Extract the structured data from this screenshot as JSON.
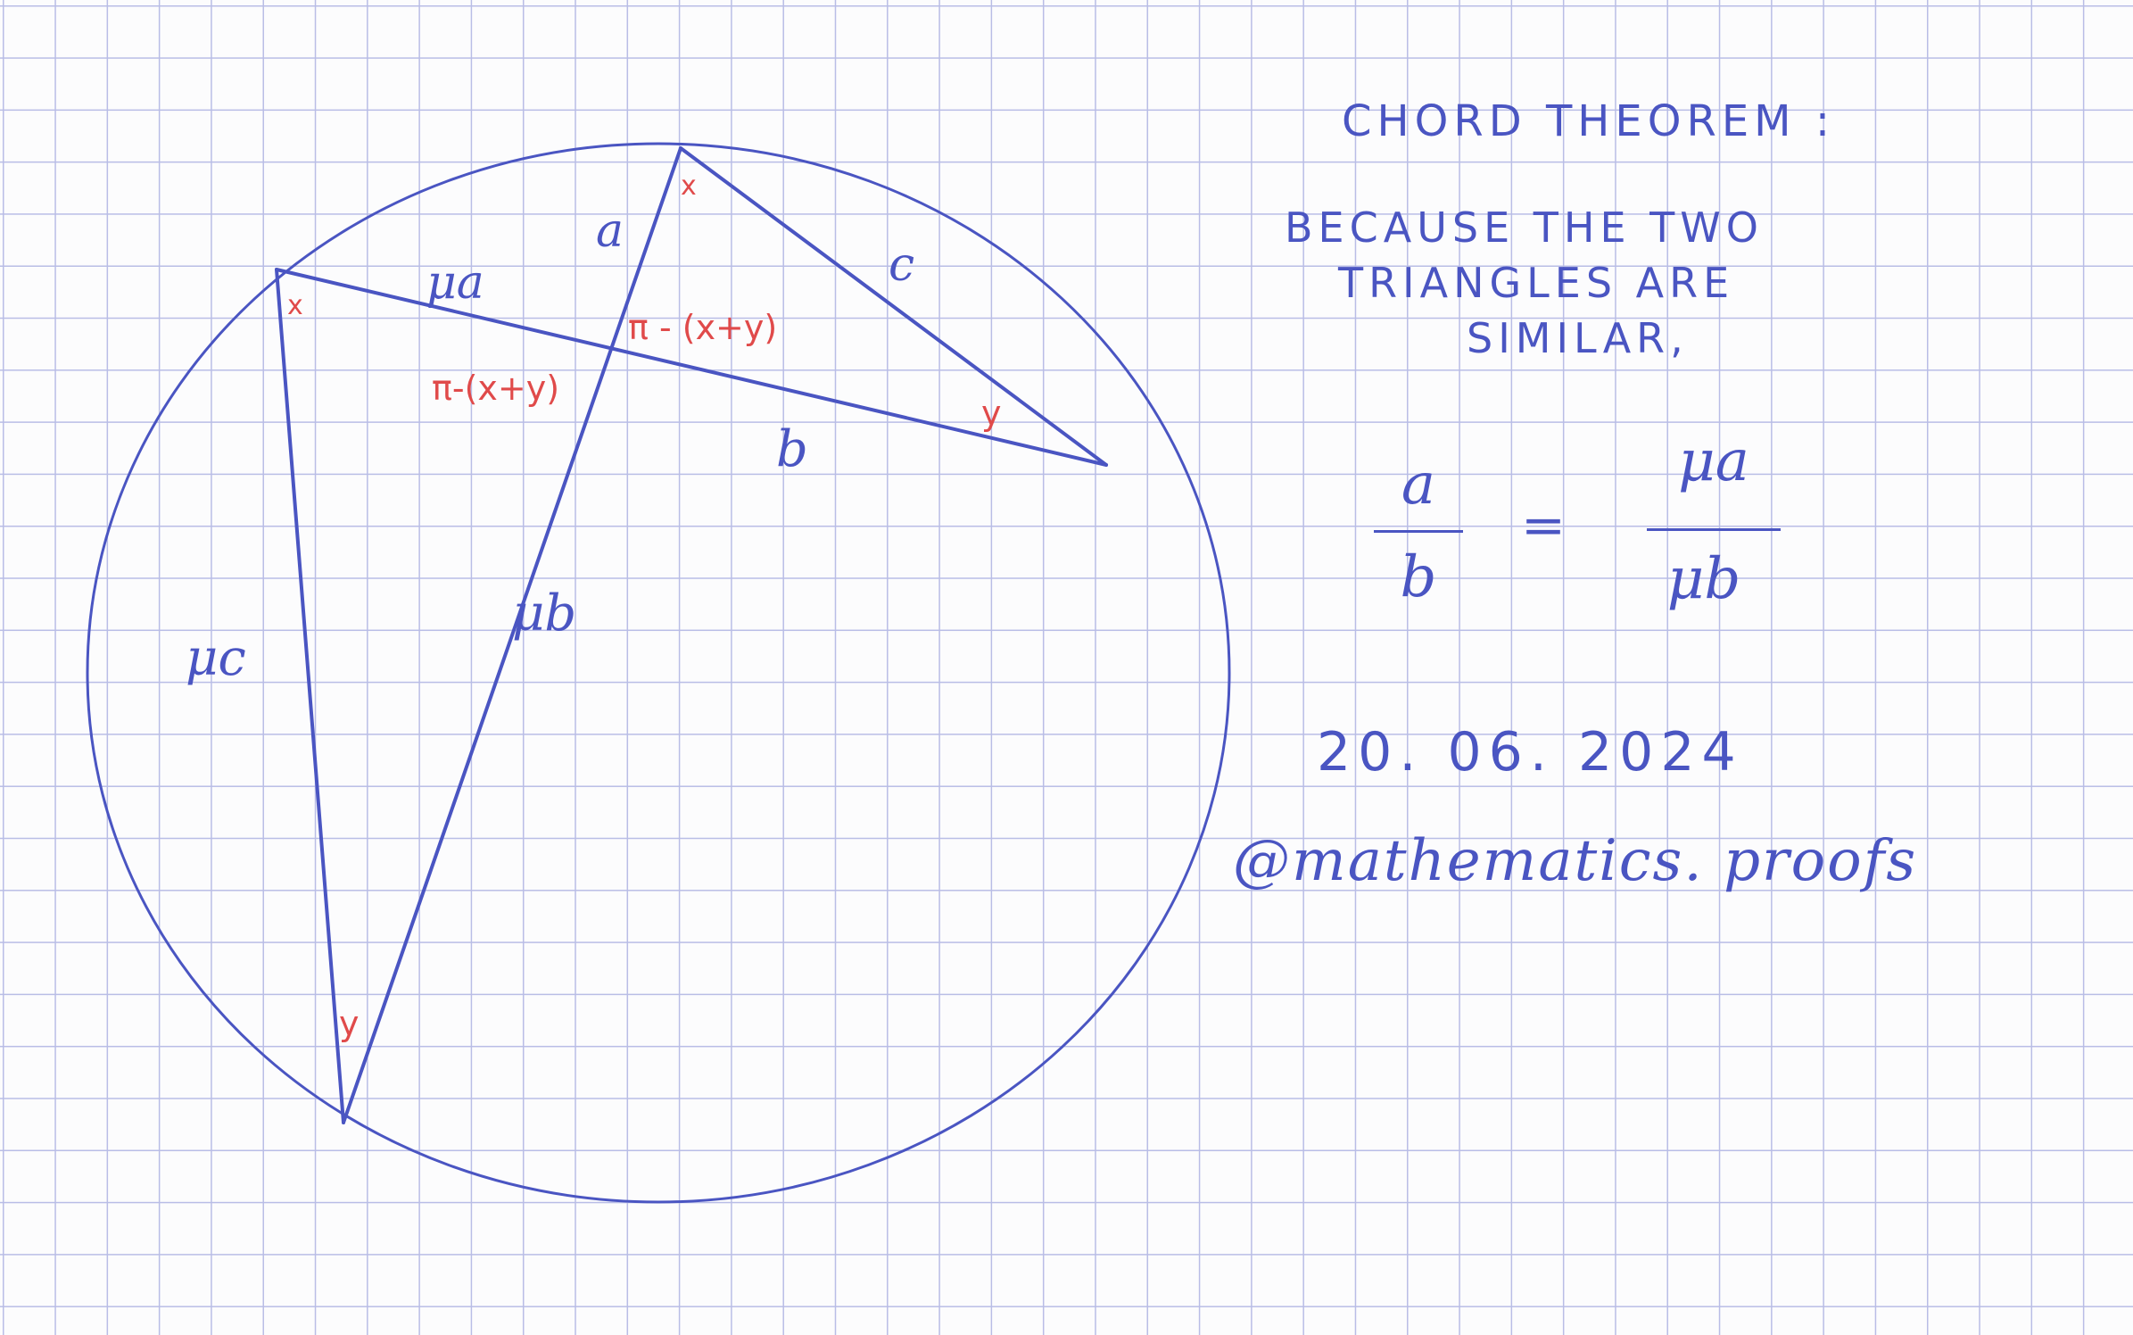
{
  "colors": {
    "ink_blue": "#4a55c2",
    "ink_red": "#e04a4a",
    "grid": "#b9bde6",
    "paper": "#fcfcfd"
  },
  "diagram": {
    "segment_labels": {
      "a": "a",
      "mu_a": "μa",
      "c": "c",
      "b": "b",
      "mu_b": "μb",
      "mu_c": "μc"
    },
    "angle_labels": {
      "x_top": "x",
      "x_left": "x",
      "y_right": "y",
      "y_bottom": "y",
      "angle_upper": "π - (x+y)",
      "angle_lower": "π-(x+y)"
    }
  },
  "notes": {
    "title": "CHORD   THEOREM :",
    "line1": "BECAUSE   THE   TWO",
    "line2": "TRIANGLES   ARE",
    "line3": "SIMILAR,",
    "equation": {
      "left_num": "a",
      "left_den": "b",
      "equals": "=",
      "right_num": "μa",
      "right_den": "μb"
    },
    "date": "20. 06. 2024",
    "handle": "@mathematics. proofs"
  }
}
